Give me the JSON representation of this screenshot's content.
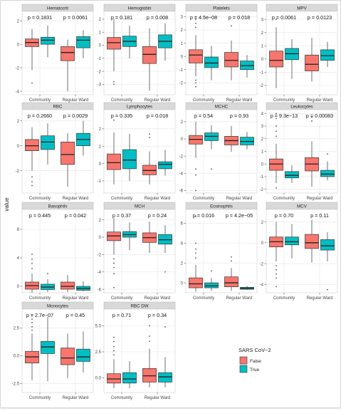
{
  "figure": {
    "y_axis_label": "value",
    "legend": {
      "title": "SARS CoV−2",
      "items": [
        {
          "label": "False",
          "color": "#f8766d"
        },
        {
          "label": "True",
          "color": "#00bfc4"
        }
      ]
    },
    "colors": {
      "panel_bg": "#ffffff",
      "strip_bg": "#d9d9d9",
      "grid": "#ebebeb",
      "box_false": "#f8766d",
      "box_true": "#00bfc4"
    }
  },
  "chart_data": [
    {
      "type": "box",
      "title": "Hematocrit",
      "x_categories": [
        "Community",
        "Regular Ward"
      ],
      "p_values": [
        "p = 0.1831",
        "p = 0.0061"
      ],
      "yticks": [
        "-4",
        "-2",
        "0",
        "2"
      ],
      "ylim": [
        -4.3,
        2.8
      ],
      "boxes": [
        {
          "group": "Community",
          "series": "False",
          "min": -2.2,
          "q1": -0.2,
          "median": 0.15,
          "q3": 0.45,
          "max": 1.3,
          "outliers": [
            -3.3
          ]
        },
        {
          "group": "Community",
          "series": "True",
          "min": -1.1,
          "q1": 0.0,
          "median": 0.35,
          "q3": 0.6,
          "max": 1.6,
          "outliers": []
        },
        {
          "group": "Regular Ward",
          "series": "False",
          "min": -4.0,
          "q1": -1.4,
          "median": -0.7,
          "q3": -0.2,
          "max": 0.4,
          "outliers": []
        },
        {
          "group": "Regular Ward",
          "series": "True",
          "min": -1.2,
          "q1": -0.3,
          "median": 0.35,
          "q3": 0.65,
          "max": 1.2,
          "outliers": []
        }
      ]
    },
    {
      "type": "box",
      "title": "Hemoglobin",
      "x_categories": [
        "Community",
        "Regular Ward"
      ],
      "p_values": [
        "p = 0.181",
        "p = 0.008"
      ],
      "yticks": [
        "-3",
        "-2",
        "-1",
        "0",
        "1",
        "2"
      ],
      "ylim": [
        -3.8,
        2.6
      ],
      "boxes": [
        {
          "group": "Community",
          "series": "False",
          "min": -2.0,
          "q1": -0.3,
          "median": 0.2,
          "q3": 0.6,
          "max": 2.0,
          "outliers": [
            -2.8,
            -3.0
          ]
        },
        {
          "group": "Community",
          "series": "True",
          "min": -1.0,
          "q1": -0.1,
          "median": 0.3,
          "q3": 0.7,
          "max": 1.5,
          "outliers": []
        },
        {
          "group": "Regular Ward",
          "series": "False",
          "min": -3.5,
          "q1": -1.4,
          "median": -0.7,
          "q3": -0.1,
          "max": 1.3,
          "outliers": []
        },
        {
          "group": "Regular Ward",
          "series": "True",
          "min": -1.2,
          "q1": -0.2,
          "median": 0.3,
          "q3": 0.8,
          "max": 1.7,
          "outliers": []
        }
      ]
    },
    {
      "type": "box",
      "title": "Platelets",
      "x_categories": [
        "Community",
        "Regular Ward"
      ],
      "p_values": [
        "p = 4.5e−08",
        "p = 0.018"
      ],
      "yticks": [
        "-2",
        "-1",
        "0",
        "1",
        "2",
        "3"
      ],
      "ylim": [
        -2.9,
        3.4
      ],
      "boxes": [
        {
          "group": "Community",
          "series": "False",
          "min": -1.5,
          "q1": -0.5,
          "median": 0.1,
          "q3": 0.5,
          "max": 1.6,
          "outliers": [
            2.2,
            2.5,
            2.8,
            3.0,
            -1.8,
            -2.0,
            -2.3
          ]
        },
        {
          "group": "Community",
          "series": "True",
          "min": -1.8,
          "q1": -0.85,
          "median": -0.5,
          "q3": -0.05,
          "max": 0.8,
          "outliers": []
        },
        {
          "group": "Regular Ward",
          "series": "False",
          "min": -1.8,
          "q1": -0.8,
          "median": -0.3,
          "q3": 0.3,
          "max": 1.2,
          "outliers": [
            2.3
          ]
        },
        {
          "group": "Regular Ward",
          "series": "True",
          "min": -1.6,
          "q1": -1.0,
          "median": -0.7,
          "q3": -0.35,
          "max": 0.1,
          "outliers": []
        }
      ]
    },
    {
      "type": "box",
      "title": "MPV",
      "x_categories": [
        "Community",
        "Regular Ward"
      ],
      "p_values": [
        "p = 0.0061",
        "p = 0.0123"
      ],
      "yticks": [
        "-2",
        "-1",
        "0",
        "1",
        "2",
        "3"
      ],
      "ylim": [
        -2.7,
        3.6
      ],
      "boxes": [
        {
          "group": "Community",
          "series": "False",
          "min": -2.2,
          "q1": -0.6,
          "median": -0.1,
          "q3": 0.6,
          "max": 2.4,
          "outliers": [
            3.0
          ]
        },
        {
          "group": "Community",
          "series": "True",
          "min": -1.5,
          "q1": -0.05,
          "median": 0.4,
          "q3": 0.8,
          "max": 1.5,
          "outliers": []
        },
        {
          "group": "Regular Ward",
          "series": "False",
          "min": -1.7,
          "q1": -0.9,
          "median": -0.4,
          "q3": 0.3,
          "max": 1.6,
          "outliers": []
        },
        {
          "group": "Regular Ward",
          "series": "True",
          "min": -0.6,
          "q1": -0.1,
          "median": 0.25,
          "q3": 0.7,
          "max": 1.3,
          "outliers": []
        }
      ]
    },
    {
      "type": "box",
      "title": "RBC",
      "x_categories": [
        "Community",
        "Regular Ward"
      ],
      "p_values": [
        "p = 0.2660",
        "p = 0.0029"
      ],
      "yticks": [
        "-2",
        "0",
        "2"
      ],
      "ylim": [
        -3.8,
        2.9
      ],
      "boxes": [
        {
          "group": "Community",
          "series": "False",
          "min": -2.0,
          "q1": -0.4,
          "median": 0.0,
          "q3": 0.5,
          "max": 1.5,
          "outliers": [
            -2.5,
            -2.9,
            -3.2
          ]
        },
        {
          "group": "Community",
          "series": "True",
          "min": -1.5,
          "q1": -0.3,
          "median": 0.3,
          "q3": 0.8,
          "max": 1.8,
          "outliers": []
        },
        {
          "group": "Regular Ward",
          "series": "False",
          "min": -3.3,
          "q1": -1.5,
          "median": -0.7,
          "q3": 0.3,
          "max": 1.0,
          "outliers": []
        },
        {
          "group": "Regular Ward",
          "series": "True",
          "min": -0.8,
          "q1": 0.0,
          "median": 0.5,
          "q3": 1.0,
          "max": 2.0,
          "outliers": []
        }
      ]
    },
    {
      "type": "box",
      "title": "Lymphocytes",
      "x_categories": [
        "Community",
        "Regular Ward"
      ],
      "p_values": [
        "p = 0.335",
        "p = 0.018"
      ],
      "yticks": [
        "-1",
        "0",
        "1",
        "2"
      ],
      "ylim": [
        -1.7,
        3.1
      ],
      "boxes": [
        {
          "group": "Community",
          "series": "False",
          "min": -1.2,
          "q1": -0.35,
          "median": 0.05,
          "q3": 0.55,
          "max": 1.8,
          "outliers": [
            2.5
          ]
        },
        {
          "group": "Community",
          "series": "True",
          "min": -1.0,
          "q1": -0.3,
          "median": 0.2,
          "q3": 0.8,
          "max": 1.7,
          "outliers": []
        },
        {
          "group": "Regular Ward",
          "series": "False",
          "min": -1.2,
          "q1": -0.65,
          "median": -0.4,
          "q3": -0.1,
          "max": 0.7,
          "outliers": [
            1.5,
            1.7
          ]
        },
        {
          "group": "Regular Ward",
          "series": "True",
          "min": -0.7,
          "q1": -0.3,
          "median": -0.05,
          "q3": 0.1,
          "max": 0.8,
          "outliers": []
        }
      ]
    },
    {
      "type": "box",
      "title": "MCHC",
      "x_categories": [
        "Community",
        "Regular Ward"
      ],
      "p_values": [
        "p = 0.54",
        "p = 0.93"
      ],
      "yticks": [
        "-6",
        "-4",
        "-2",
        "0",
        "2"
      ],
      "ylim": [
        -6.3,
        3.4
      ],
      "boxes": [
        {
          "group": "Community",
          "series": "False",
          "min": -2.2,
          "q1": -0.6,
          "median": -0.05,
          "q3": 0.4,
          "max": 2.0,
          "outliers": [
            -3.5,
            -4.2,
            -6.0
          ]
        },
        {
          "group": "Community",
          "series": "True",
          "min": -1.2,
          "q1": -0.2,
          "median": 0.3,
          "q3": 0.7,
          "max": 1.6,
          "outliers": [
            -3.5
          ]
        },
        {
          "group": "Regular Ward",
          "series": "False",
          "min": -1.5,
          "q1": -0.7,
          "median": -0.2,
          "q3": 0.3,
          "max": 1.5,
          "outliers": []
        },
        {
          "group": "Regular Ward",
          "series": "True",
          "min": -1.2,
          "q1": -0.7,
          "median": -0.3,
          "q3": 0.2,
          "max": 0.8,
          "outliers": []
        }
      ]
    },
    {
      "type": "box",
      "title": "Leukocytes",
      "x_categories": [
        "Community",
        "Regular Ward"
      ],
      "p_values": [
        "p = 9.3e−13",
        "p = 0.00083"
      ],
      "yticks": [
        "-2",
        "-1",
        "0",
        "1",
        "2",
        "3",
        "4"
      ],
      "ylim": [
        -2.3,
        4.3
      ],
      "boxes": [
        {
          "group": "Community",
          "series": "False",
          "min": -1.5,
          "q1": -0.5,
          "median": 0.0,
          "q3": 0.4,
          "max": 1.6,
          "outliers": [
            2.2,
            2.6,
            3.0,
            3.6,
            4.0,
            -1.9
          ]
        },
        {
          "group": "Community",
          "series": "True",
          "min": -1.5,
          "q1": -1.1,
          "median": -0.9,
          "q3": -0.6,
          "max": -0.1,
          "outliers": []
        },
        {
          "group": "Regular Ward",
          "series": "False",
          "min": -1.8,
          "q1": -0.55,
          "median": 0.0,
          "q3": 0.5,
          "max": 1.8,
          "outliers": [
            3.4,
            3.7
          ]
        },
        {
          "group": "Regular Ward",
          "series": "True",
          "min": -1.3,
          "q1": -1.0,
          "median": -0.8,
          "q3": -0.5,
          "max": 0.2,
          "outliers": [
            0.8
          ]
        }
      ]
    },
    {
      "type": "box",
      "title": "Basophils",
      "x_categories": [
        "Community",
        "Regular Ward"
      ],
      "p_values": [
        "p = 0.445",
        "p = 0.042"
      ],
      "yticks": [
        "0",
        "4",
        "8"
      ],
      "ylim": [
        -0.9,
        10.8
      ],
      "boxes": [
        {
          "group": "Community",
          "series": "False",
          "min": -0.9,
          "q1": -0.4,
          "median": 0.1,
          "q3": 0.6,
          "max": 1.8,
          "outliers": [
            2.5,
            3.2,
            3.8,
            4.5
          ]
        },
        {
          "group": "Community",
          "series": "True",
          "min": -0.8,
          "q1": -0.45,
          "median": -0.1,
          "q3": 0.3,
          "max": 1.0,
          "outliers": [
            1.8
          ]
        },
        {
          "group": "Regular Ward",
          "series": "False",
          "min": -0.8,
          "q1": -0.4,
          "median": 0.0,
          "q3": 0.6,
          "max": 1.6,
          "outliers": []
        },
        {
          "group": "Regular Ward",
          "series": "True",
          "min": -0.7,
          "q1": -0.55,
          "median": -0.3,
          "q3": 0.0,
          "max": 0.7,
          "outliers": []
        }
      ]
    },
    {
      "type": "box",
      "title": "MCH",
      "x_categories": [
        "Community",
        "Regular Ward"
      ],
      "p_values": [
        "p = 0.37",
        "p = 0.24"
      ],
      "yticks": [
        "-6",
        "-4",
        "-2",
        "0",
        "2"
      ],
      "ylim": [
        -6.4,
        3.2
      ],
      "boxes": [
        {
          "group": "Community",
          "series": "False",
          "min": -2.0,
          "q1": -0.4,
          "median": 0.15,
          "q3": 0.6,
          "max": 2.2,
          "outliers": [
            -2.5,
            -3.0,
            -3.5,
            -4.2,
            -5.8
          ]
        },
        {
          "group": "Community",
          "series": "True",
          "min": -1.5,
          "q1": 0.0,
          "median": 0.3,
          "q3": 0.65,
          "max": 1.7,
          "outliers": []
        },
        {
          "group": "Regular Ward",
          "series": "False",
          "min": -1.8,
          "q1": -0.6,
          "median": -0.05,
          "q3": 0.5,
          "max": 1.8,
          "outliers": []
        },
        {
          "group": "Regular Ward",
          "series": "True",
          "min": -1.8,
          "q1": -0.8,
          "median": -0.3,
          "q3": 0.3,
          "max": 1.4,
          "outliers": [
            -4.0
          ]
        }
      ]
    },
    {
      "type": "box",
      "title": "Eosinophils",
      "x_categories": [
        "Community",
        "Regular Ward"
      ],
      "p_values": [
        "p = 0.016",
        "p = 4.2e−05"
      ],
      "yticks": [
        "0",
        "2",
        "4",
        "6"
      ],
      "ylim": [
        -1.0,
        7.4
      ],
      "boxes": [
        {
          "group": "Community",
          "series": "False",
          "min": -0.9,
          "q1": -0.5,
          "median": -0.1,
          "q3": 0.5,
          "max": 1.8,
          "outliers": [
            2.5,
            3.0,
            3.4,
            4.0,
            6.7
          ]
        },
        {
          "group": "Community",
          "series": "True",
          "min": -0.8,
          "q1": -0.5,
          "median": -0.3,
          "q3": 0.0,
          "max": 0.5,
          "outliers": [
            1.2
          ]
        },
        {
          "group": "Regular Ward",
          "series": "False",
          "min": -0.8,
          "q1": -0.4,
          "median": 0.0,
          "q3": 0.6,
          "max": 1.5,
          "outliers": [
            2.2,
            2.6
          ]
        },
        {
          "group": "Regular Ward",
          "series": "True",
          "min": -0.7,
          "q1": -0.65,
          "median": -0.55,
          "q3": -0.45,
          "max": -0.3,
          "outliers": []
        }
      ]
    },
    {
      "type": "box",
      "title": "MCV",
      "x_categories": [
        "Community",
        "Regular Ward"
      ],
      "p_values": [
        "p = 0.70",
        "p = 0.11"
      ],
      "yticks": [
        "-4",
        "-2",
        "0",
        "2"
      ],
      "ylim": [
        -4.8,
        3.2
      ],
      "boxes": [
        {
          "group": "Community",
          "series": "False",
          "min": -1.8,
          "q1": -0.4,
          "median": 0.1,
          "q3": 0.55,
          "max": 2.0,
          "outliers": [
            -2.2,
            -2.6,
            -3.0,
            -3.4,
            -4.2
          ]
        },
        {
          "group": "Community",
          "series": "True",
          "min": -1.5,
          "q1": -0.2,
          "median": 0.1,
          "q3": 0.55,
          "max": 1.8,
          "outliers": []
        },
        {
          "group": "Regular Ward",
          "series": "False",
          "min": -1.9,
          "q1": -0.55,
          "median": 0.0,
          "q3": 0.8,
          "max": 2.2,
          "outliers": []
        },
        {
          "group": "Regular Ward",
          "series": "True",
          "min": -1.8,
          "q1": -0.7,
          "median": -0.3,
          "q3": 0.3,
          "max": 1.0,
          "outliers": [
            -4.5
          ]
        }
      ]
    },
    {
      "type": "box",
      "title": "Monocytes",
      "x_categories": [
        "Community",
        "Regular Ward"
      ],
      "p_values": [
        "p = 2.7e−07",
        "p = 0.45"
      ],
      "yticks": [
        "-2.5",
        "0.0",
        "2.5"
      ],
      "ylim": [
        -3.3,
        4.2
      ],
      "boxes": [
        {
          "group": "Community",
          "series": "False",
          "min": -2.2,
          "q1": -0.65,
          "median": -0.1,
          "q3": 0.4,
          "max": 2.0,
          "outliers": [
            2.3,
            2.6,
            3.0,
            3.3,
            3.6
          ]
        },
        {
          "group": "Community",
          "series": "True",
          "min": -2.3,
          "q1": 0.2,
          "median": 0.8,
          "q3": 1.3,
          "max": 3.5,
          "outliers": []
        },
        {
          "group": "Regular Ward",
          "series": "False",
          "min": -2.0,
          "q1": -0.8,
          "median": -0.2,
          "q3": 0.7,
          "max": 2.0,
          "outliers": []
        },
        {
          "group": "Regular Ward",
          "series": "True",
          "min": -1.5,
          "q1": -0.5,
          "median": -0.1,
          "q3": 0.6,
          "max": 2.2,
          "outliers": []
        }
      ]
    },
    {
      "type": "box",
      "title": "RBC DW",
      "x_categories": [
        "Community",
        "Regular Ward"
      ],
      "p_values": [
        "p = 0.71",
        "p = 0.34"
      ],
      "yticks": [
        "0.0",
        "2.5",
        "5.0"
      ],
      "ylim": [
        -1.4,
        6.6
      ],
      "boxes": [
        {
          "group": "Community",
          "series": "False",
          "min": -1.0,
          "q1": -0.5,
          "median": -0.1,
          "q3": 0.4,
          "max": 1.8,
          "outliers": [
            2.2,
            2.6,
            3.0,
            3.5,
            3.9
          ]
        },
        {
          "group": "Community",
          "series": "True",
          "min": -1.0,
          "q1": -0.5,
          "median": -0.1,
          "q3": 0.5,
          "max": 1.6,
          "outliers": []
        },
        {
          "group": "Regular Ward",
          "series": "False",
          "min": -0.9,
          "q1": -0.4,
          "median": 0.2,
          "q3": 0.9,
          "max": 2.8,
          "outliers": [
            3.5,
            4.0,
            5.0
          ]
        },
        {
          "group": "Regular Ward",
          "series": "True",
          "min": -0.9,
          "q1": -0.4,
          "median": 0.1,
          "q3": 0.5,
          "max": 2.0,
          "outliers": [
            4.9
          ]
        }
      ]
    }
  ]
}
